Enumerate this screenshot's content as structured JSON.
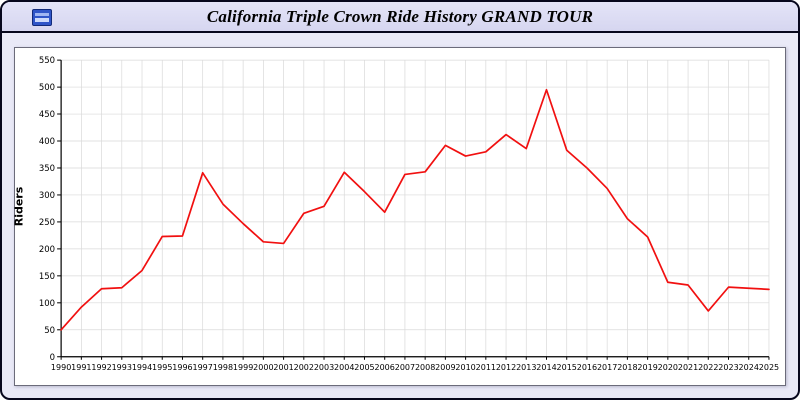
{
  "window": {
    "title": "California Triple Crown Ride History GRAND TOUR",
    "icon": "app-icon"
  },
  "chart_data": {
    "type": "line",
    "title": "California Triple Crown Ride History GRAND TOUR",
    "xlabel": "",
    "ylabel": "Riders",
    "ylim": [
      0,
      550
    ],
    "ytick_step": 50,
    "grid": true,
    "legend": "none",
    "line_color": "#f11010",
    "grid_color": "#d9d9d9",
    "axis_color": "#000000",
    "x": [
      1990,
      1991,
      1992,
      1993,
      1994,
      1995,
      1996,
      1997,
      1998,
      1999,
      2000,
      2001,
      2002,
      2003,
      2004,
      2005,
      2006,
      2007,
      2008,
      2009,
      2010,
      2011,
      2012,
      2013,
      2014,
      2015,
      2016,
      2017,
      2018,
      2019,
      2020,
      2021,
      2022,
      2023,
      2024,
      2025
    ],
    "values": [
      50,
      92,
      126,
      128,
      160,
      223,
      224,
      341,
      283,
      247,
      213,
      210,
      266,
      279,
      342,
      306,
      268,
      338,
      343,
      392,
      372,
      380,
      412,
      386,
      495,
      383,
      350,
      312,
      256,
      222,
      138,
      133,
      85,
      129,
      127,
      125
    ]
  }
}
